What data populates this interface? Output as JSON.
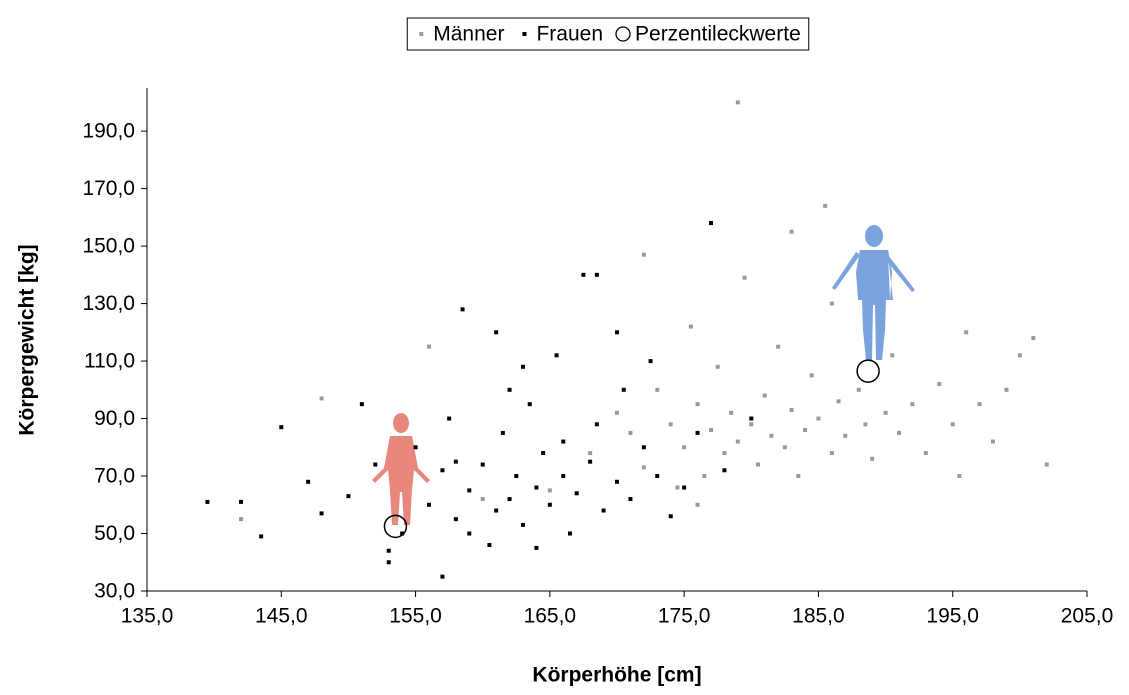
{
  "chart_data": {
    "type": "scatter",
    "x_label": "Körperhöhe [cm]",
    "y_label": "Körpergewicht [kg]",
    "xlim": [
      135,
      205
    ],
    "ylim": [
      30,
      205
    ],
    "xticks": [
      {
        "value": 135,
        "label": "135,0"
      },
      {
        "value": 145,
        "label": "145,0"
      },
      {
        "value": 155,
        "label": "155,0"
      },
      {
        "value": 165,
        "label": "165,0"
      },
      {
        "value": 175,
        "label": "175,0"
      },
      {
        "value": 185,
        "label": "185,0"
      },
      {
        "value": 195,
        "label": "195,0"
      },
      {
        "value": 205,
        "label": "205,0"
      }
    ],
    "yticks": [
      {
        "value": 30,
        "label": "30,0"
      },
      {
        "value": 50,
        "label": "50,0"
      },
      {
        "value": 70,
        "label": "70,0"
      },
      {
        "value": 90,
        "label": "90,0"
      },
      {
        "value": 110,
        "label": "110,0"
      },
      {
        "value": 130,
        "label": "130,0"
      },
      {
        "value": 150,
        "label": "150,0"
      },
      {
        "value": 170,
        "label": "170,0"
      },
      {
        "value": 190,
        "label": "190,0"
      }
    ],
    "grid": false,
    "legend": "top",
    "series": [
      {
        "name": "Männer",
        "color": "#999999",
        "marker": "square",
        "x": [
          142,
          148,
          156,
          160,
          165,
          168,
          170,
          171,
          172,
          172,
          173,
          174,
          174.5,
          175,
          175.5,
          176,
          176.5,
          177,
          177.5,
          178,
          178.5,
          179,
          179,
          179.5,
          180,
          180.5,
          181,
          181.5,
          182,
          182.5,
          183,
          183.5,
          184,
          184.5,
          185,
          185.5,
          186,
          186.5,
          187,
          188,
          188.5,
          189,
          190,
          190.5,
          191,
          192,
          193,
          194,
          195,
          195.5,
          196,
          197,
          198,
          199,
          200,
          201,
          202,
          183,
          176,
          186
        ],
        "values": [
          55,
          97,
          115,
          62,
          65,
          78,
          92,
          85,
          73,
          147,
          100,
          88,
          66,
          80,
          122,
          95,
          70,
          86,
          108,
          78,
          92,
          200,
          82,
          139,
          88,
          74,
          98,
          84,
          115,
          80,
          93,
          70,
          86,
          105,
          90,
          164,
          78,
          96,
          84,
          100,
          88,
          76,
          92,
          112,
          85,
          95,
          78,
          102,
          88,
          70,
          120,
          95,
          82,
          100,
          112,
          118,
          74,
          155,
          60,
          130
        ]
      },
      {
        "name": "Frauen",
        "color": "#000000",
        "marker": "square",
        "x": [
          139.5,
          142,
          143.5,
          145,
          147,
          148,
          150,
          151,
          152,
          153,
          154,
          155,
          156,
          157,
          157.5,
          158,
          158.5,
          159,
          160,
          160.5,
          161,
          161.5,
          162,
          162.5,
          163,
          163.5,
          164,
          164.5,
          165,
          165.5,
          166,
          166.5,
          167,
          167.5,
          168,
          168.5,
          169,
          170,
          170.5,
          171,
          172,
          172.5,
          173,
          174,
          175,
          176,
          177,
          178,
          180,
          157,
          153,
          161,
          163,
          159,
          166,
          164,
          170,
          168.5,
          162,
          158
        ],
        "values": [
          61,
          61,
          49,
          87,
          68,
          57,
          63,
          95,
          74,
          44,
          50,
          80,
          60,
          72,
          90,
          55,
          128,
          65,
          74,
          46,
          58,
          85,
          62,
          70,
          53,
          95,
          66,
          78,
          60,
          112,
          70,
          50,
          64,
          140,
          75,
          88,
          58,
          68,
          100,
          62,
          80,
          110,
          70,
          56,
          66,
          85,
          158,
          72,
          90,
          35,
          40,
          120,
          108,
          50,
          82,
          45,
          120,
          140,
          100,
          75
        ]
      },
      {
        "name": "Perzentileckwerte",
        "color": "#000000",
        "marker": "circle",
        "x": [
          153.5,
          188.7
        ],
        "values": [
          52.5,
          106.5
        ]
      }
    ]
  }
}
